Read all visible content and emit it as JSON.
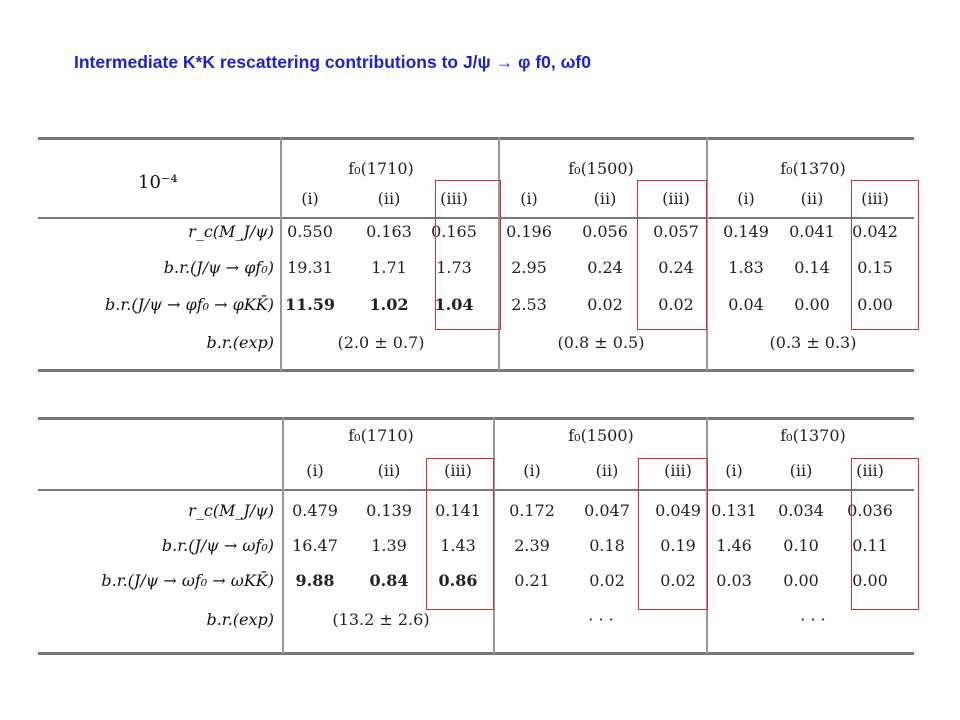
{
  "title": "Intermediate K*K rescattering contributions to J/ψ → φ f0, ωf0",
  "tables": [
    {
      "corner": "10⁻⁴",
      "groups": [
        "f₀(1710)",
        "f₀(1500)",
        "f₀(1370)"
      ],
      "subheaders": [
        "(i)",
        "(ii)",
        "(iii)"
      ],
      "rows": [
        {
          "label": "r_c(M_J/ψ)",
          "values": [
            "0.550",
            "0.163",
            "0.165",
            "0.196",
            "0.056",
            "0.057",
            "0.149",
            "0.041",
            "0.042"
          ],
          "bold_count": 0
        },
        {
          "label": "b.r.(J/ψ → φf₀)",
          "values": [
            "19.31",
            "1.71",
            "1.73",
            "2.95",
            "0.24",
            "0.24",
            "1.83",
            "0.14",
            "0.15"
          ],
          "bold_count": 0
        },
        {
          "label": "b.r.(J/ψ → φf₀ → φKK̄)",
          "values": [
            "11.59",
            "1.02",
            "1.04",
            "2.53",
            "0.02",
            "0.02",
            "0.04",
            "0.00",
            "0.00"
          ],
          "bold_count": 3
        }
      ],
      "exp_label": "b.r.(exp)",
      "exp_values": [
        "(2.0 ± 0.7)",
        "(0.8 ± 0.5)",
        "(0.3 ± 0.3)"
      ]
    },
    {
      "corner": "",
      "groups": [
        "f₀(1710)",
        "f₀(1500)",
        "f₀(1370)"
      ],
      "subheaders": [
        "(i)",
        "(ii)",
        "(iii)"
      ],
      "rows": [
        {
          "label": "r_c(M_J/ψ)",
          "values": [
            "0.479",
            "0.139",
            "0.141",
            "0.172",
            "0.047",
            "0.049",
            "0.131",
            "0.034",
            "0.036"
          ],
          "bold_count": 0
        },
        {
          "label": "b.r.(J/ψ → ωf₀)",
          "values": [
            "16.47",
            "1.39",
            "1.43",
            "2.39",
            "0.18",
            "0.19",
            "1.46",
            "0.10",
            "0.11"
          ],
          "bold_count": 0
        },
        {
          "label": "b.r.(J/ψ → ωf₀ → ωKK̄)",
          "values": [
            "9.88",
            "0.84",
            "0.86",
            "0.21",
            "0.02",
            "0.02",
            "0.03",
            "0.00",
            "0.00"
          ],
          "bold_count": 3
        }
      ],
      "exp_label": "b.r.(exp)",
      "exp_values": [
        "(13.2 ± 2.6)",
        "· · ·",
        "· · ·"
      ]
    }
  ]
}
